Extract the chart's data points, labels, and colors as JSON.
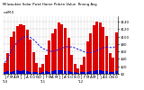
{
  "title_line1": "Milwaukee Solar Pwrd Home Prdctn Value  Rnnng Avg",
  "title_line2": "$ val  $M.0",
  "bar_color": "#dd0000",
  "line_color": "#2222dd",
  "background_color": "#ffffff",
  "plot_bg": "#ffffff",
  "grid_color": "#888888",
  "values": [
    30,
    55,
    100,
    115,
    128,
    132,
    130,
    118,
    92,
    58,
    28,
    16,
    26,
    50,
    90,
    108,
    122,
    138,
    132,
    124,
    96,
    52,
    26,
    14,
    24,
    46,
    88,
    110,
    130,
    140,
    138,
    126,
    102,
    56,
    44,
    112
  ],
  "running_avg": [
    30,
    43,
    62,
    75,
    86,
    93,
    99,
    100,
    98,
    92,
    84,
    74,
    68,
    64,
    61,
    60,
    62,
    66,
    69,
    72,
    73,
    72,
    70,
    66,
    63,
    59,
    57,
    57,
    59,
    63,
    67,
    70,
    72,
    71,
    70,
    75
  ],
  "small_bar_values": [
    6,
    8,
    6,
    7,
    9,
    8,
    10,
    8,
    6,
    5,
    4,
    3,
    5,
    7,
    5,
    8,
    9,
    10,
    9,
    8,
    7,
    5,
    4,
    3,
    4,
    6,
    5,
    7,
    8,
    9,
    10,
    8,
    7,
    5,
    6,
    8
  ],
  "small_bar_color": "#0000cc",
  "ylim": [
    0,
    155
  ],
  "ytick_values": [
    0,
    20,
    40,
    60,
    80,
    100,
    120,
    140
  ],
  "ytick_labels": [
    "$0",
    "$20",
    "$40",
    "$60",
    "$80",
    "$100",
    "$120",
    "$140"
  ],
  "n_bars": 36
}
